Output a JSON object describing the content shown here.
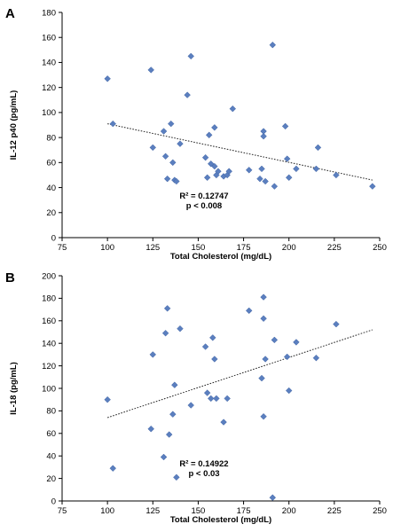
{
  "chart_data": [
    {
      "panel": "A",
      "type": "scatter",
      "xlabel": "Total Cholesterol (mg/dL)",
      "ylabel": "IL-12 p40 (pg/mL)",
      "xlim": [
        75,
        250
      ],
      "ylim": [
        0,
        180
      ],
      "xticks": [
        75,
        100,
        125,
        150,
        175,
        200,
        225,
        250
      ],
      "yticks": [
        0,
        20,
        40,
        60,
        80,
        100,
        120,
        140,
        160,
        180
      ],
      "marker_color": "#5b7fbf",
      "trendline": {
        "x": [
          100,
          246
        ],
        "y": [
          91,
          46
        ]
      },
      "annotation": [
        "R² = 0.12747",
        "p < 0.008"
      ],
      "points": [
        [
          100,
          127
        ],
        [
          103,
          91
        ],
        [
          124,
          134
        ],
        [
          125,
          72
        ],
        [
          131,
          85
        ],
        [
          132,
          65
        ],
        [
          133,
          47
        ],
        [
          135,
          91
        ],
        [
          136,
          60
        ],
        [
          137,
          46
        ],
        [
          138,
          45
        ],
        [
          140,
          75
        ],
        [
          144,
          114
        ],
        [
          146,
          145
        ],
        [
          154,
          64
        ],
        [
          155,
          48
        ],
        [
          156,
          82
        ],
        [
          157,
          59
        ],
        [
          159,
          88
        ],
        [
          159,
          57
        ],
        [
          160,
          50
        ],
        [
          161,
          53
        ],
        [
          164,
          49
        ],
        [
          166,
          50
        ],
        [
          167,
          53
        ],
        [
          169,
          103
        ],
        [
          178,
          54
        ],
        [
          184,
          47
        ],
        [
          185,
          55
        ],
        [
          186,
          81
        ],
        [
          186,
          85
        ],
        [
          187,
          45
        ],
        [
          191,
          154
        ],
        [
          192,
          41
        ],
        [
          198,
          89
        ],
        [
          199,
          63
        ],
        [
          200,
          48
        ],
        [
          204,
          55
        ],
        [
          215,
          55
        ],
        [
          216,
          72
        ],
        [
          226,
          50
        ],
        [
          246,
          41
        ]
      ]
    },
    {
      "panel": "B",
      "type": "scatter",
      "xlabel": "Total Cholesterol (mg/dL)",
      "ylabel": "IL-18 (pg/mL)",
      "xlim": [
        75,
        250
      ],
      "ylim": [
        0,
        200
      ],
      "xticks": [
        75,
        100,
        125,
        150,
        175,
        200,
        225,
        250
      ],
      "yticks": [
        0,
        20,
        40,
        60,
        80,
        100,
        120,
        140,
        160,
        180,
        200
      ],
      "marker_color": "#5b7fbf",
      "trendline": {
        "x": [
          100,
          246
        ],
        "y": [
          74,
          152
        ]
      },
      "annotation": [
        "R² = 0.14922",
        "p < 0.03"
      ],
      "points": [
        [
          100,
          90
        ],
        [
          103,
          29
        ],
        [
          124,
          64
        ],
        [
          125,
          130
        ],
        [
          131,
          39
        ],
        [
          132,
          149
        ],
        [
          133,
          171
        ],
        [
          134,
          59
        ],
        [
          136,
          77
        ],
        [
          137,
          103
        ],
        [
          138,
          21
        ],
        [
          140,
          153
        ],
        [
          146,
          85
        ],
        [
          154,
          137
        ],
        [
          155,
          96
        ],
        [
          157,
          91
        ],
        [
          158,
          145
        ],
        [
          159,
          126
        ],
        [
          160,
          91
        ],
        [
          164,
          70
        ],
        [
          166,
          91
        ],
        [
          178,
          169
        ],
        [
          185,
          109
        ],
        [
          186,
          181
        ],
        [
          186,
          162
        ],
        [
          186,
          75
        ],
        [
          187,
          126
        ],
        [
          191,
          3
        ],
        [
          192,
          143
        ],
        [
          199,
          128
        ],
        [
          200,
          98
        ],
        [
          204,
          141
        ],
        [
          215,
          127
        ],
        [
          226,
          157
        ]
      ]
    }
  ]
}
